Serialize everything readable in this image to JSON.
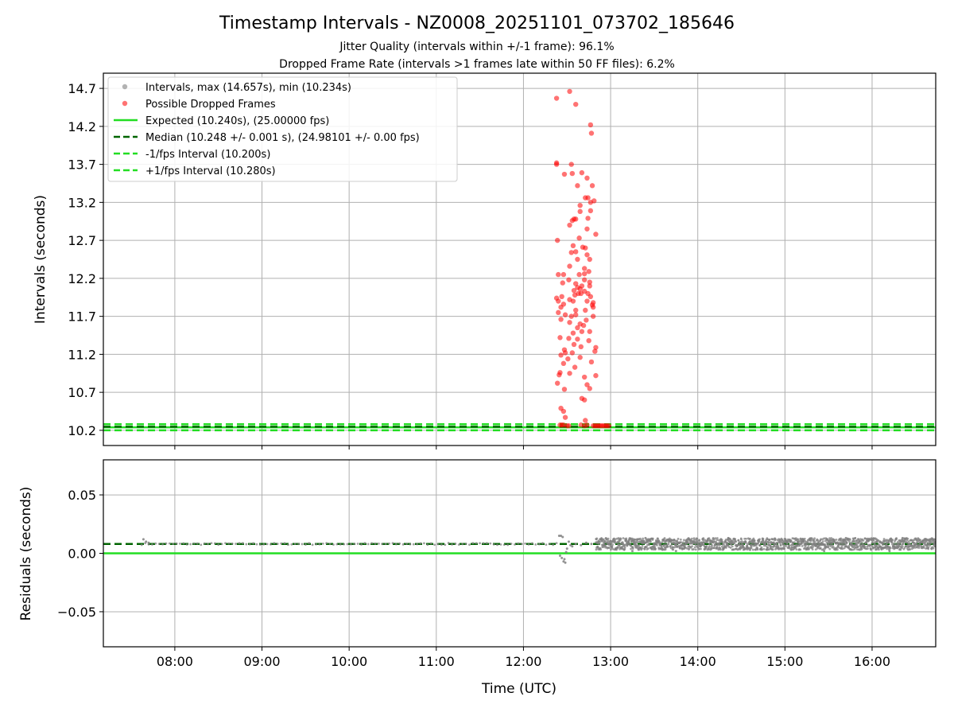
{
  "title": "Timestamp Intervals - NZ0008_20251101_073702_185646",
  "subtitle_1": "Jitter Quality (intervals within +/-1 frame): 96.1%",
  "subtitle_2": "Dropped Frame Rate (intervals >1 frames late within 50 FF files): 6.2%",
  "colors": {
    "intervals": "#808080",
    "dropped": "#ff0000",
    "expected": "#22dd22",
    "median": "#006400",
    "fps_bound": "#22dd22",
    "grid": "#b0b0b0"
  },
  "chart_data": [
    {
      "type": "scatter",
      "panel": "top",
      "xlabel": "",
      "ylabel": "Intervals (seconds)",
      "x_unit": "hours UTC",
      "xlim": [
        7.18,
        16.73
      ],
      "ylim": [
        10.0,
        14.9
      ],
      "x_ticks": [
        8,
        9,
        10,
        11,
        12,
        13,
        14,
        15,
        16
      ],
      "y_ticks": [
        10.2,
        10.7,
        11.2,
        11.7,
        12.2,
        12.7,
        13.2,
        13.7,
        14.2,
        14.7
      ],
      "y_tick_labels": [
        "10.2",
        "10.7",
        "11.2",
        "11.7",
        "12.2",
        "12.7",
        "13.2",
        "13.7",
        "14.2",
        "14.7"
      ],
      "grid": true,
      "legend_position": "top-left",
      "legend": [
        {
          "label": "Intervals, max (14.657s), min (10.234s)",
          "marker": "dot",
          "color": "#808080"
        },
        {
          "label": "Possible Dropped Frames",
          "marker": "dot",
          "color": "#ff0000"
        },
        {
          "label": "Expected (10.240s), (25.00000 fps)",
          "marker": "solid",
          "color": "#22dd22"
        },
        {
          "label": "Median (10.248 +/- 0.001 s), (24.98101 +/- 0.00 fps)",
          "marker": "dashed",
          "color": "#006400"
        },
        {
          "label": "-1/fps Interval (10.200s)",
          "marker": "dashed",
          "color": "#22dd22"
        },
        {
          "label": "+1/fps Interval (10.280s)",
          "marker": "dashed",
          "color": "#22dd22"
        }
      ],
      "lines": [
        {
          "name": "expected",
          "y": 10.24
        },
        {
          "name": "median",
          "y": 10.248
        },
        {
          "name": "minus_fps",
          "y": 10.2
        },
        {
          "name": "plus_fps",
          "y": 10.28
        }
      ],
      "series": [
        {
          "name": "dropped",
          "points": [
            [
              12.38,
              14.57
            ],
            [
              12.53,
              14.66
            ],
            [
              12.6,
              14.49
            ],
            [
              12.77,
              14.22
            ],
            [
              12.78,
              14.11
            ],
            [
              12.38,
              13.7
            ],
            [
              12.38,
              13.72
            ],
            [
              12.47,
              13.57
            ],
            [
              12.55,
              13.7
            ],
            [
              12.56,
              13.58
            ],
            [
              12.67,
              13.59
            ],
            [
              12.73,
              13.52
            ],
            [
              12.62,
              13.42
            ],
            [
              12.79,
              13.42
            ],
            [
              12.71,
              13.26
            ],
            [
              12.74,
              13.26
            ],
            [
              12.77,
              13.2
            ],
            [
              12.81,
              13.22
            ],
            [
              12.65,
              13.16
            ],
            [
              12.77,
              13.09
            ],
            [
              12.65,
              13.08
            ],
            [
              12.74,
              12.99
            ],
            [
              12.58,
              12.98
            ],
            [
              12.6,
              12.98
            ],
            [
              12.56,
              12.96
            ],
            [
              12.53,
              12.9
            ],
            [
              12.73,
              12.85
            ],
            [
              12.64,
              12.73
            ],
            [
              12.83,
              12.78
            ],
            [
              12.39,
              12.7
            ],
            [
              12.57,
              12.63
            ],
            [
              12.68,
              12.61
            ],
            [
              12.71,
              12.6
            ],
            [
              12.6,
              12.55
            ],
            [
              12.55,
              12.54
            ],
            [
              12.73,
              12.51
            ],
            [
              12.62,
              12.45
            ],
            [
              12.76,
              12.45
            ],
            [
              12.53,
              12.36
            ],
            [
              12.7,
              12.33
            ],
            [
              12.75,
              12.29
            ],
            [
              12.4,
              12.25
            ],
            [
              12.46,
              12.25
            ],
            [
              12.64,
              12.25
            ],
            [
              12.7,
              12.26
            ],
            [
              12.52,
              12.18
            ],
            [
              12.7,
              12.18
            ],
            [
              12.76,
              12.15
            ],
            [
              12.45,
              12.14
            ],
            [
              12.6,
              12.13
            ],
            [
              12.76,
              12.1
            ],
            [
              12.67,
              12.1
            ],
            [
              12.62,
              12.08
            ],
            [
              12.65,
              12.06
            ],
            [
              12.58,
              12.04
            ],
            [
              12.7,
              12.03
            ],
            [
              12.63,
              12.0
            ],
            [
              12.66,
              12.0
            ],
            [
              12.74,
              12.0
            ],
            [
              12.59,
              11.98
            ],
            [
              12.44,
              11.96
            ],
            [
              12.77,
              11.96
            ],
            [
              12.38,
              11.94
            ],
            [
              12.53,
              11.92
            ],
            [
              12.4,
              11.9
            ],
            [
              12.57,
              11.9
            ],
            [
              12.73,
              11.9
            ],
            [
              12.8,
              11.88
            ],
            [
              12.46,
              11.86
            ],
            [
              12.79,
              11.85
            ],
            [
              12.43,
              11.82
            ],
            [
              12.8,
              11.82
            ],
            [
              12.6,
              11.78
            ],
            [
              12.71,
              11.78
            ],
            [
              12.4,
              11.75
            ],
            [
              12.48,
              11.72
            ],
            [
              12.6,
              11.72
            ],
            [
              12.55,
              11.7
            ],
            [
              12.8,
              11.7
            ],
            [
              12.43,
              11.66
            ],
            [
              12.72,
              11.65
            ],
            [
              12.53,
              11.62
            ],
            [
              12.65,
              11.6
            ],
            [
              12.69,
              11.58
            ],
            [
              12.62,
              11.55
            ],
            [
              12.67,
              11.5
            ],
            [
              12.76,
              11.5
            ],
            [
              12.57,
              11.48
            ],
            [
              12.42,
              11.42
            ],
            [
              12.52,
              11.41
            ],
            [
              12.62,
              11.4
            ],
            [
              12.75,
              11.38
            ],
            [
              12.58,
              11.33
            ],
            [
              12.66,
              11.3
            ],
            [
              12.83,
              11.29
            ],
            [
              12.47,
              11.26
            ],
            [
              12.82,
              11.24
            ],
            [
              12.48,
              11.22
            ],
            [
              12.56,
              11.22
            ],
            [
              12.43,
              11.19
            ],
            [
              12.65,
              11.16
            ],
            [
              12.51,
              11.14
            ],
            [
              12.78,
              11.1
            ],
            [
              12.46,
              11.08
            ],
            [
              12.59,
              11.03
            ],
            [
              12.42,
              10.96
            ],
            [
              12.41,
              10.93
            ],
            [
              12.53,
              10.95
            ],
            [
              12.7,
              10.9
            ],
            [
              12.83,
              10.92
            ],
            [
              12.39,
              10.82
            ],
            [
              12.73,
              10.8
            ],
            [
              12.76,
              10.75
            ],
            [
              12.47,
              10.74
            ],
            [
              12.67,
              10.62
            ],
            [
              12.7,
              10.6
            ],
            [
              12.43,
              10.49
            ],
            [
              12.46,
              10.45
            ],
            [
              12.48,
              10.37
            ],
            [
              12.71,
              10.33
            ],
            [
              12.42,
              10.27
            ],
            [
              12.44,
              10.27
            ],
            [
              12.46,
              10.27
            ],
            [
              12.5,
              10.26
            ],
            [
              12.52,
              10.26
            ],
            [
              12.66,
              10.27
            ],
            [
              12.7,
              10.26
            ],
            [
              12.73,
              10.27
            ],
            [
              12.8,
              10.26
            ],
            [
              12.82,
              10.26
            ],
            [
              12.84,
              10.26
            ],
            [
              12.86,
              10.26
            ],
            [
              12.88,
              10.26
            ],
            [
              12.9,
              10.26
            ],
            [
              12.92,
              10.26
            ],
            [
              12.94,
              10.26
            ],
            [
              12.96,
              10.26
            ],
            [
              12.98,
              10.26
            ]
          ]
        }
      ]
    },
    {
      "type": "scatter",
      "panel": "bottom",
      "xlabel": "Time (UTC)",
      "ylabel": "Residuals (seconds)",
      "xlim": [
        7.18,
        16.73
      ],
      "ylim": [
        -0.08,
        0.08
      ],
      "x_ticks": [
        8,
        9,
        10,
        11,
        12,
        13,
        14,
        15,
        16
      ],
      "x_tick_labels": [
        "08:00",
        "09:00",
        "10:00",
        "11:00",
        "12:00",
        "13:00",
        "14:00",
        "15:00",
        "16:00"
      ],
      "y_ticks": [
        0.05,
        0.0,
        -0.05
      ],
      "y_tick_labels": [
        "0.05",
        "0.00",
        "−0.05"
      ],
      "grid": true,
      "lines": [
        {
          "name": "expected",
          "y": 0.0
        },
        {
          "name": "median",
          "y": 0.008
        }
      ],
      "series": [
        {
          "name": "residuals",
          "dense_runs": [
            {
              "x_start": 7.62,
              "x_end": 12.4,
              "y": 0.008,
              "spread": 0.0008,
              "step": 0.04
            },
            {
              "x_start": 12.83,
              "x_end": 16.73,
              "y": 0.008,
              "spread": 0.005,
              "step": 0.0025
            }
          ],
          "points": [
            [
              7.64,
              0.012
            ],
            [
              7.67,
              0.01
            ],
            [
              7.7,
              0.009
            ],
            [
              12.41,
              0.015
            ],
            [
              12.43,
              0.015
            ],
            [
              12.45,
              0.014
            ],
            [
              12.42,
              -0.002
            ],
            [
              12.44,
              -0.004
            ],
            [
              12.46,
              -0.007
            ],
            [
              12.48,
              -0.008
            ],
            [
              12.47,
              -0.005
            ],
            [
              12.5,
              0.004
            ],
            [
              12.52,
              0.01
            ],
            [
              12.54,
              0.007
            ],
            [
              12.49,
              0.001
            ],
            [
              12.56,
              0.006
            ],
            [
              12.6,
              0.008
            ],
            [
              12.66,
              0.007
            ],
            [
              12.72,
              0.009
            ],
            [
              12.78,
              0.008
            ],
            [
              13.1,
              0.012
            ],
            [
              13.4,
              0.013
            ],
            [
              13.9,
              0.012
            ],
            [
              14.35,
              0.013
            ],
            [
              14.8,
              0.012
            ],
            [
              15.2,
              0.012
            ],
            [
              15.7,
              0.013
            ],
            [
              16.05,
              0.012
            ],
            [
              16.35,
              0.013
            ],
            [
              16.62,
              0.012
            ],
            [
              13.25,
              0.002
            ],
            [
              13.75,
              0.002
            ],
            [
              14.6,
              0.003
            ],
            [
              15.45,
              0.002
            ],
            [
              16.2,
              0.002
            ]
          ]
        }
      ]
    }
  ]
}
